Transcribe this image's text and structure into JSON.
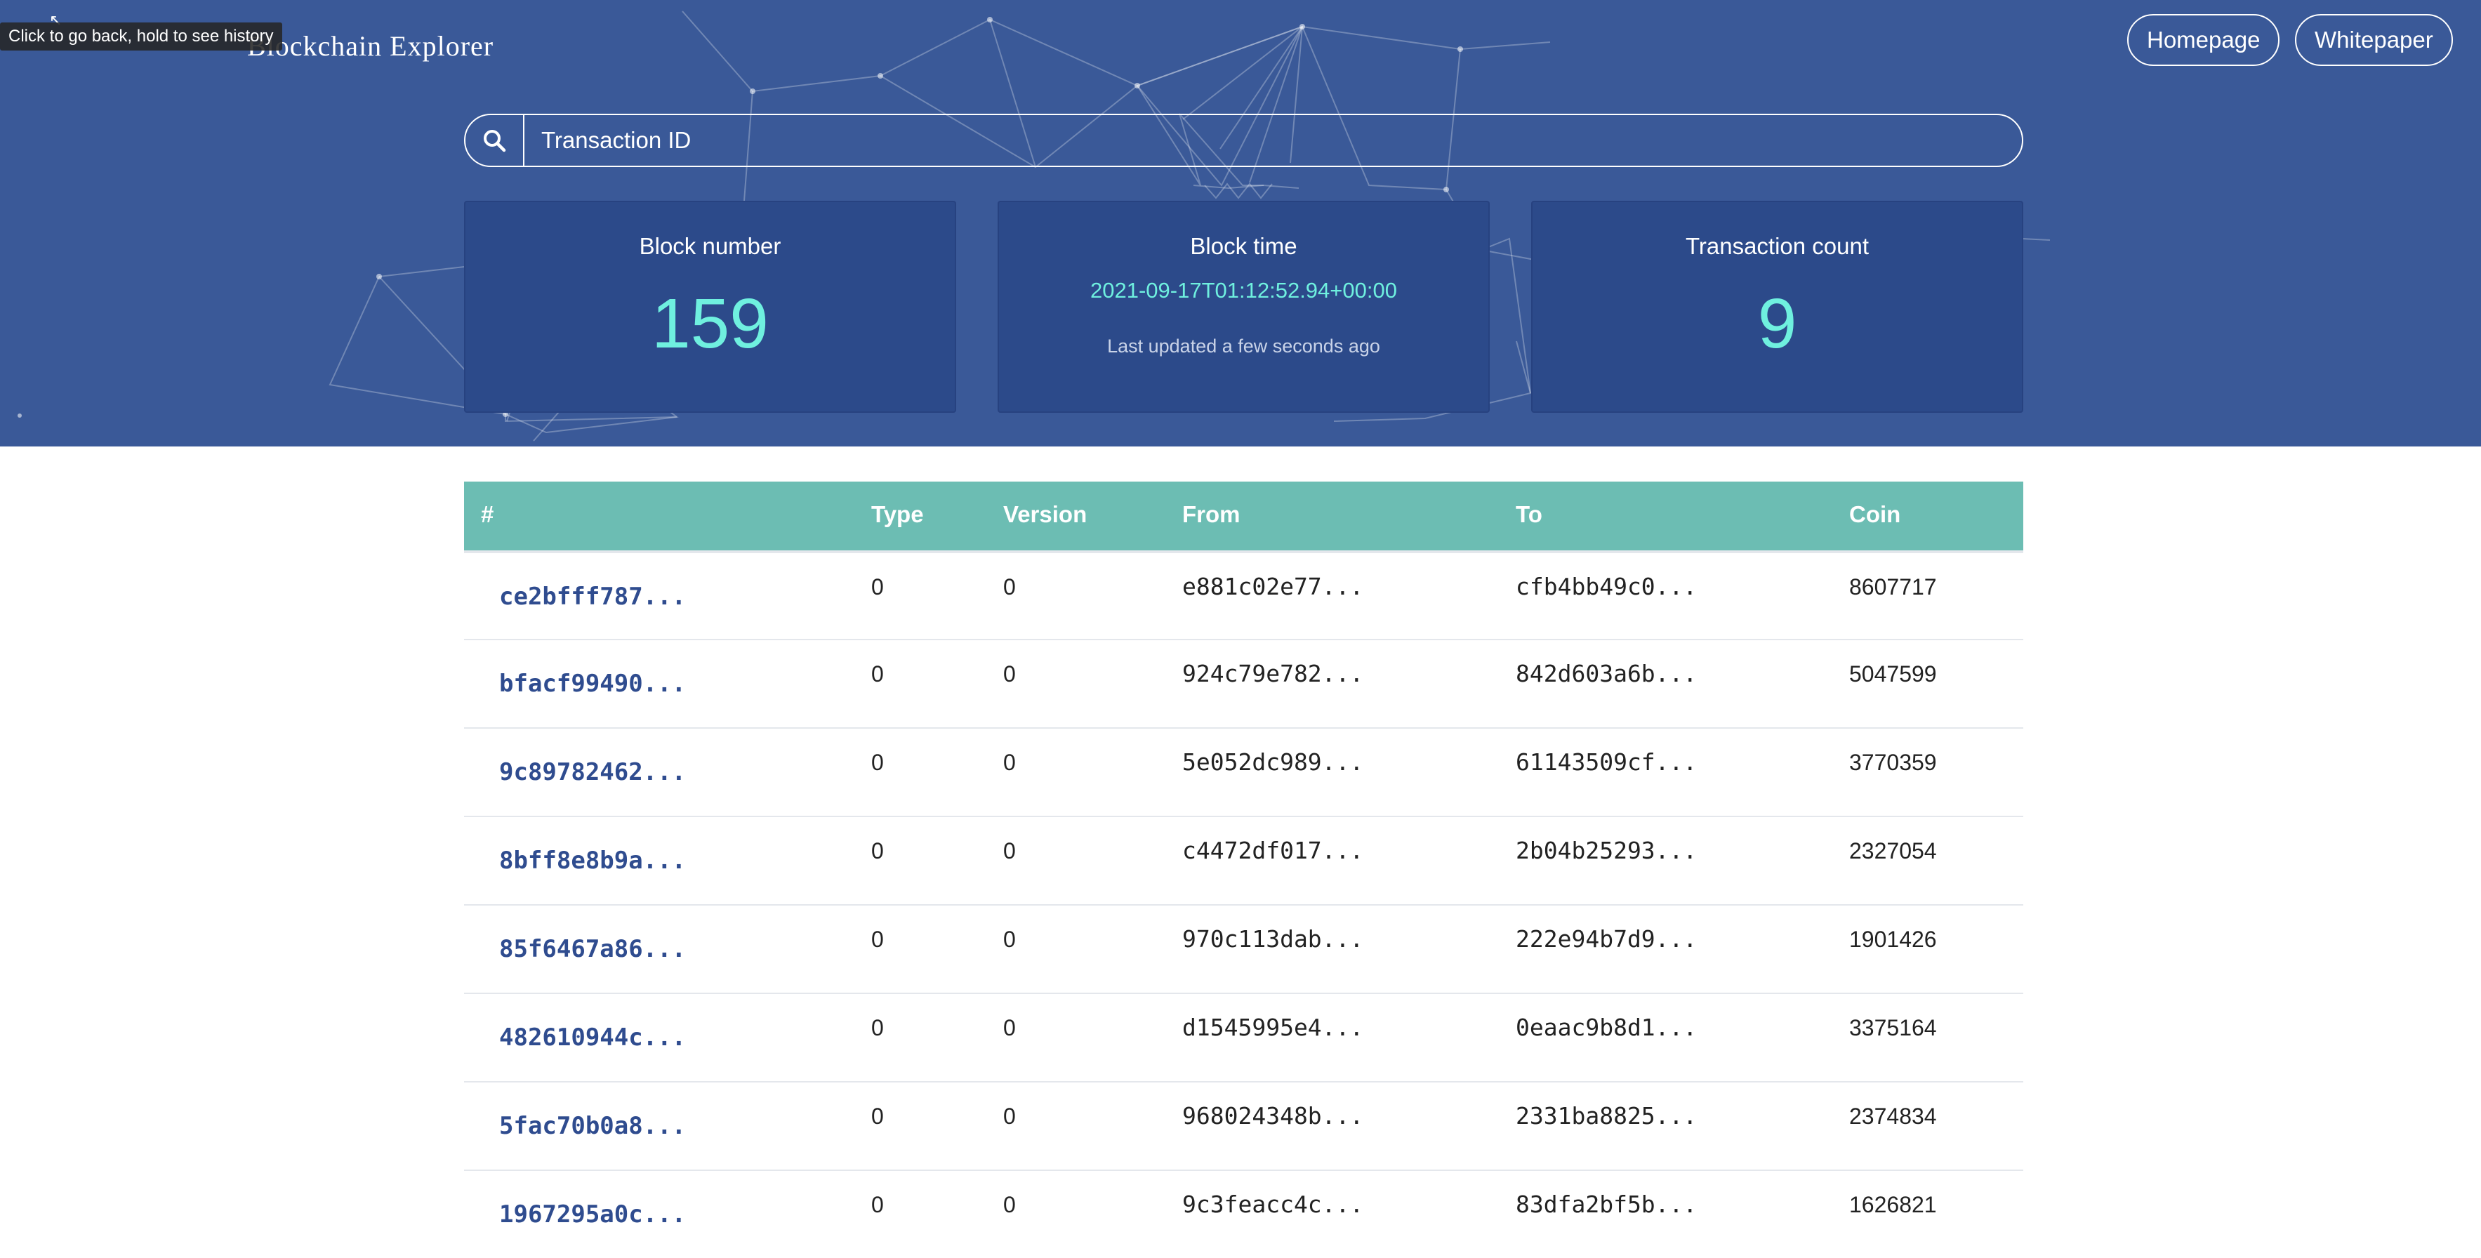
{
  "header": {
    "brand_name": "Blockchain Explorer",
    "tooltip": "Click to go back, hold to see history",
    "nav": [
      "Homepage",
      "Whitepaper"
    ]
  },
  "search": {
    "placeholder": "Transaction ID",
    "icon": "search-icon"
  },
  "stats": {
    "block_number": {
      "label": "Block number",
      "value": "159"
    },
    "block_time": {
      "label": "Block time",
      "value": "2021-09-17T01:12:52.94+00:00",
      "updated": "Last updated a few seconds ago"
    },
    "tx_count": {
      "label": "Transaction count",
      "value": "9"
    }
  },
  "table": {
    "headers": [
      "#",
      "Type",
      "Version",
      "From",
      "To",
      "Coin"
    ],
    "rows": [
      {
        "hash": "ce2bfff787...",
        "type": "0",
        "version": "0",
        "from": "e881c02e77...",
        "to": "cfb4bb49c0...",
        "coin": "8607717"
      },
      {
        "hash": "bfacf99490...",
        "type": "0",
        "version": "0",
        "from": "924c79e782...",
        "to": "842d603a6b...",
        "coin": "5047599"
      },
      {
        "hash": "9c89782462...",
        "type": "0",
        "version": "0",
        "from": "5e052dc989...",
        "to": "61143509cf...",
        "coin": "3770359"
      },
      {
        "hash": "8bff8e8b9a...",
        "type": "0",
        "version": "0",
        "from": "c4472df017...",
        "to": "2b04b25293...",
        "coin": "2327054"
      },
      {
        "hash": "85f6467a86...",
        "type": "0",
        "version": "0",
        "from": "970c113dab...",
        "to": "222e94b7d9...",
        "coin": "1901426"
      },
      {
        "hash": "482610944c...",
        "type": "0",
        "version": "0",
        "from": "d1545995e4...",
        "to": "0eaac9b8d1...",
        "coin": "3375164"
      },
      {
        "hash": "5fac70b0a8...",
        "type": "0",
        "version": "0",
        "from": "968024348b...",
        "to": "2331ba8825...",
        "coin": "2374834"
      },
      {
        "hash": "1967295a0c...",
        "type": "0",
        "version": "0",
        "from": "9c3feacc4c...",
        "to": "83dfa2bf5b...",
        "coin": "1626821"
      }
    ]
  },
  "colors": {
    "hero_bg": "#3a5998",
    "card_bg": "#2c4a8a",
    "accent": "#6ff0df",
    "table_header": "#6cbdb3",
    "link": "#2f4c8f"
  }
}
